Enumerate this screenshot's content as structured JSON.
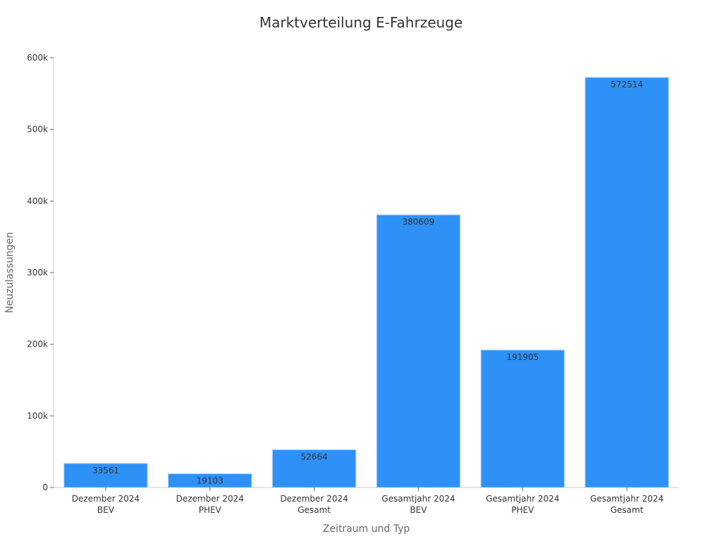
{
  "chart_data": {
    "type": "bar",
    "title": "Marktverteilung E-Fahrzeuge",
    "xlabel": "Zeitraum und Typ",
    "ylabel": "Neuzulassungen",
    "categories": [
      [
        "Dezember 2024",
        "BEV"
      ],
      [
        "Dezember 2024",
        "PHEV"
      ],
      [
        "Dezember 2024",
        "Gesamt"
      ],
      [
        "Gesamtjahr 2024",
        "BEV"
      ],
      [
        "Gesamtjahr 2024",
        "PHEV"
      ],
      [
        "Gesamtjahr 2024",
        "Gesamt"
      ]
    ],
    "values": [
      33561,
      19103,
      52664,
      380609,
      191905,
      572514
    ],
    "data_labels": [
      "33561",
      "19103",
      "52664",
      "380609",
      "191905",
      "572514"
    ],
    "ylim": [
      0,
      600000
    ],
    "yticks": [
      0,
      100000,
      200000,
      300000,
      400000,
      500000,
      600000
    ],
    "ytick_labels": [
      "0",
      "100k",
      "200k",
      "300k",
      "400k",
      "500k",
      "600k"
    ],
    "grid": false,
    "legend": "none",
    "bar_color": "#2e91f7",
    "bar_edge_color": "#a9cdf5"
  }
}
